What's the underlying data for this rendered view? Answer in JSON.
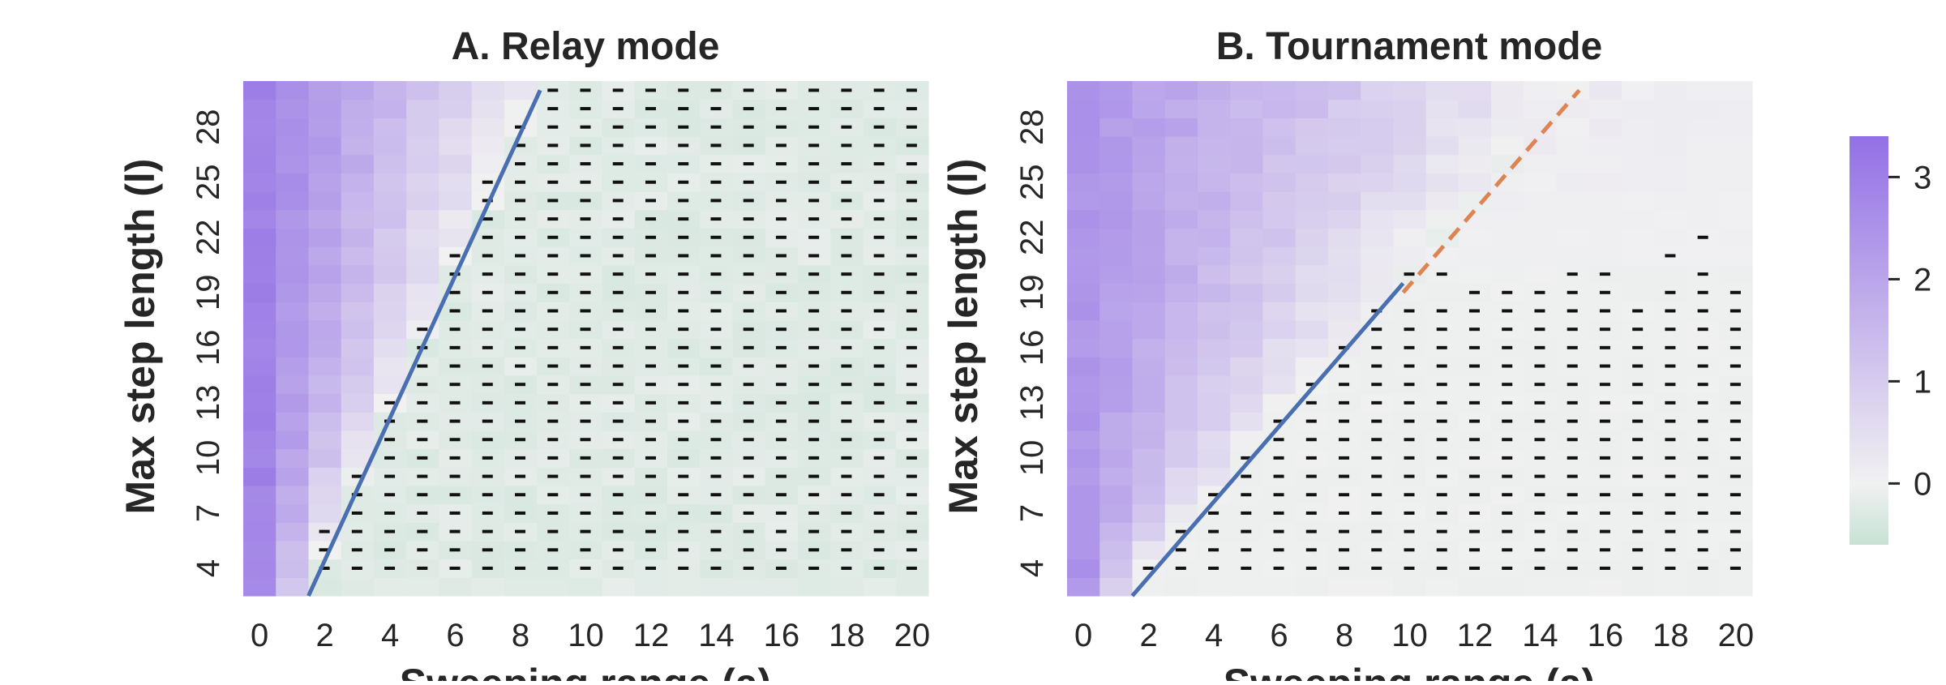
{
  "chart_data": [
    {
      "type": "heatmap",
      "title": "A. Relay mode",
      "xlabel": "Sweeping range (a)",
      "ylabel": "Max step length (l)",
      "x": [
        0,
        1,
        2,
        3,
        4,
        5,
        6,
        7,
        8,
        9,
        10,
        11,
        12,
        13,
        14,
        15,
        16,
        17,
        18,
        19,
        20
      ],
      "y": [
        3,
        4,
        5,
        6,
        7,
        8,
        9,
        10,
        11,
        12,
        13,
        14,
        15,
        16,
        17,
        18,
        19,
        20,
        21,
        22,
        23,
        24,
        25,
        26,
        27,
        28,
        29,
        30
      ],
      "x_ticks": [
        "0",
        "2",
        "4",
        "6",
        "8",
        "10",
        "12",
        "14",
        "16",
        "18",
        "20"
      ],
      "y_ticks": [
        "4",
        "7",
        "10",
        "13",
        "16",
        "19",
        "22",
        "25",
        "28"
      ],
      "boundary_lines": [
        {
          "style": "solid",
          "color": "#4a6fb0",
          "points": [
            [
              1.5,
              3.0
            ],
            [
              8.6,
              30.0
            ]
          ]
        }
      ],
      "value_model": "v(a,l)=2.9*(a0(l)-a)/a0(l) where a0(l)=1.5+0.263*(l-3); negative region ~ -0.25",
      "marker_region": "a >= 1.5+0.263*(l-3) is marked with '-' (negative value)"
    },
    {
      "type": "heatmap",
      "title": "B. Tournament mode",
      "xlabel": "Sweeping range (a)",
      "ylabel": "Max step length (l)",
      "x": [
        0,
        1,
        2,
        3,
        4,
        5,
        6,
        7,
        8,
        9,
        10,
        11,
        12,
        13,
        14,
        15,
        16,
        17,
        18,
        19,
        20
      ],
      "y": [
        3,
        4,
        5,
        6,
        7,
        8,
        9,
        10,
        11,
        12,
        13,
        14,
        15,
        16,
        17,
        18,
        19,
        20,
        21,
        22,
        23,
        24,
        25,
        26,
        27,
        28,
        29,
        30
      ],
      "x_ticks": [
        "0",
        "2",
        "4",
        "6",
        "8",
        "10",
        "12",
        "14",
        "16",
        "18",
        "20"
      ],
      "y_ticks": [
        "4",
        "7",
        "10",
        "13",
        "16",
        "19",
        "22",
        "25",
        "28"
      ],
      "boundary_lines": [
        {
          "style": "solid",
          "color": "#4a6fb0",
          "points": [
            [
              1.5,
              3.0
            ],
            [
              9.8,
              19.5
            ]
          ]
        },
        {
          "style": "dashed",
          "color": "#dd8452",
          "points": [
            [
              9.8,
              19.5
            ],
            [
              15.2,
              30.0
            ]
          ]
        }
      ],
      "value_model": "v(a,l)=2.4*(a0(l)-a)/a0(l) where a0(l)=1.5+0.503*(l-3); negative region ~ -0.05",
      "marker_region": "a >= 1.5+0.503*(l-3) and l <= 20 mostly marked with '-'"
    }
  ],
  "colorbar": {
    "ticks": [
      "0",
      "1",
      "2",
      "3"
    ],
    "range": [
      -0.6,
      3.4
    ],
    "colors": {
      "negative": "#c7e1d5",
      "zero": "#f1f1f1",
      "positive": "#9370e5"
    }
  }
}
